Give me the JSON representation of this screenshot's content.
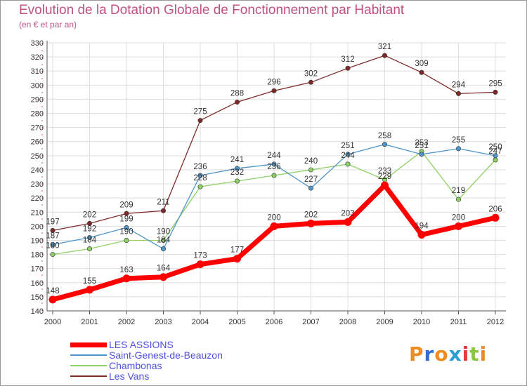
{
  "title": "Evolution de la Dotation Globale de Fonctionnement par Habitant",
  "subtitle": "(en € et par an)",
  "brand": {
    "letters": [
      "P",
      "r",
      "o",
      "x",
      "i",
      "t",
      "i"
    ],
    "colors": [
      "#f08c1e",
      "#2f6fd0",
      "#f08c1e",
      "#2aa0d0",
      "#e83a3a",
      "#8cc63f",
      "#f08c1e"
    ]
  },
  "chart_data": {
    "type": "line",
    "x": [
      "2000",
      "2001",
      "2002",
      "2003",
      "2004",
      "2005",
      "2006",
      "2007",
      "2008",
      "2009",
      "2010",
      "2011",
      "2012"
    ],
    "ylim": [
      140,
      330
    ],
    "yticks": [
      140,
      150,
      160,
      170,
      180,
      190,
      200,
      210,
      220,
      230,
      240,
      250,
      260,
      270,
      280,
      290,
      300,
      310,
      320,
      330
    ],
    "grid": true,
    "legend": "bottom-left",
    "series": [
      {
        "name": "LES ASSIONS",
        "color": "#ff0000",
        "values": [
          148,
          155,
          163,
          164,
          173,
          177,
          200,
          202,
          203,
          229,
          194,
          200,
          206
        ]
      },
      {
        "name": "Saint-Genest-de-Beauzon",
        "color": "#4f95c9",
        "values": [
          187,
          192,
          199,
          184,
          236,
          241,
          244,
          227,
          251,
          258,
          251,
          255,
          250
        ]
      },
      {
        "name": "Chambonas",
        "color": "#8fd167",
        "values": [
          180,
          184,
          190,
          190,
          228,
          232,
          236,
          240,
          244,
          233,
          253,
          219,
          247
        ]
      },
      {
        "name": "Les Vans",
        "color": "#7f2929",
        "values": [
          197,
          202,
          209,
          211,
          275,
          288,
          296,
          302,
          312,
          321,
          309,
          294,
          295
        ]
      }
    ]
  }
}
